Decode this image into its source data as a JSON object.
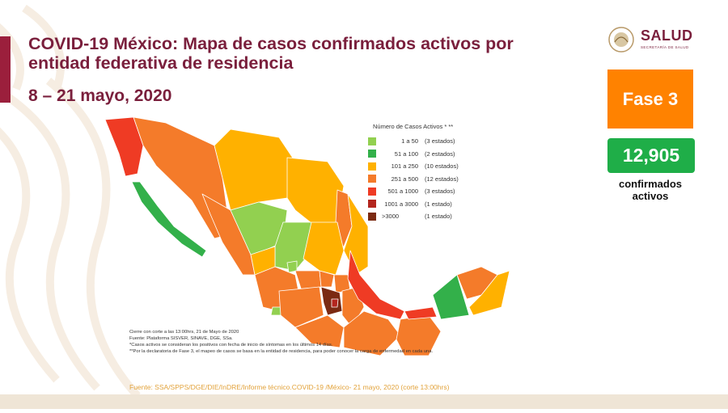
{
  "header": {
    "title": "COVID-19 México: Mapa de casos confirmados activos por entidad federativa de residencia",
    "date_range": "8 – 21 mayo, 2020"
  },
  "logo": {
    "name": "SALUD",
    "subtitle": "SECRETARÍA DE SALUD"
  },
  "phase": {
    "label": "Fase 3",
    "color": "#ff8200"
  },
  "active_cases": {
    "count": "12,905",
    "label": "confirmados activos",
    "color": "#1fae48"
  },
  "legend": {
    "title": "Número de Casos Activos * **",
    "items": [
      {
        "range": "1 a 50",
        "states": "(3 estados)",
        "color": "#92d050"
      },
      {
        "range": "51 a 100",
        "states": "(2 estados)",
        "color": "#33b04a"
      },
      {
        "range": "101 a 250",
        "states": "(10 estados)",
        "color": "#ffb100"
      },
      {
        "range": "251 a 500",
        "states": "(12 estados)",
        "color": "#f47b2a"
      },
      {
        "range": "501 a 1000",
        "states": "(3 estados)",
        "color": "#ef3b24"
      },
      {
        "range": "1001 a 3000",
        "states": "(1 estado)",
        "color": "#b3261e"
      },
      {
        "range": ">3000",
        "states": "(1 estado)",
        "color": "#7b2a12"
      }
    ]
  },
  "notes": [
    "Cierre con corte a las 13:00hrs, 21 de Mayo de 2020",
    "Fuente: Plataforma SISVER, SINAVE, DGE, SSa.",
    "*Casos activos se consideran los positivos con fecha de inicio de síntomas en los últimos 14 días.",
    "**Por la declaratoria de Fase 3, el mapeo de casos se basa en la entidad de residencia, para poder conocer la carga de enfermedad en cada una."
  ],
  "source": "Fuente: SSA/SPPS/DGE/DIE/InDRE/Informe técnico.COVID-19 /México- 21 mayo, 2020 (corte 13:00hrs)"
}
